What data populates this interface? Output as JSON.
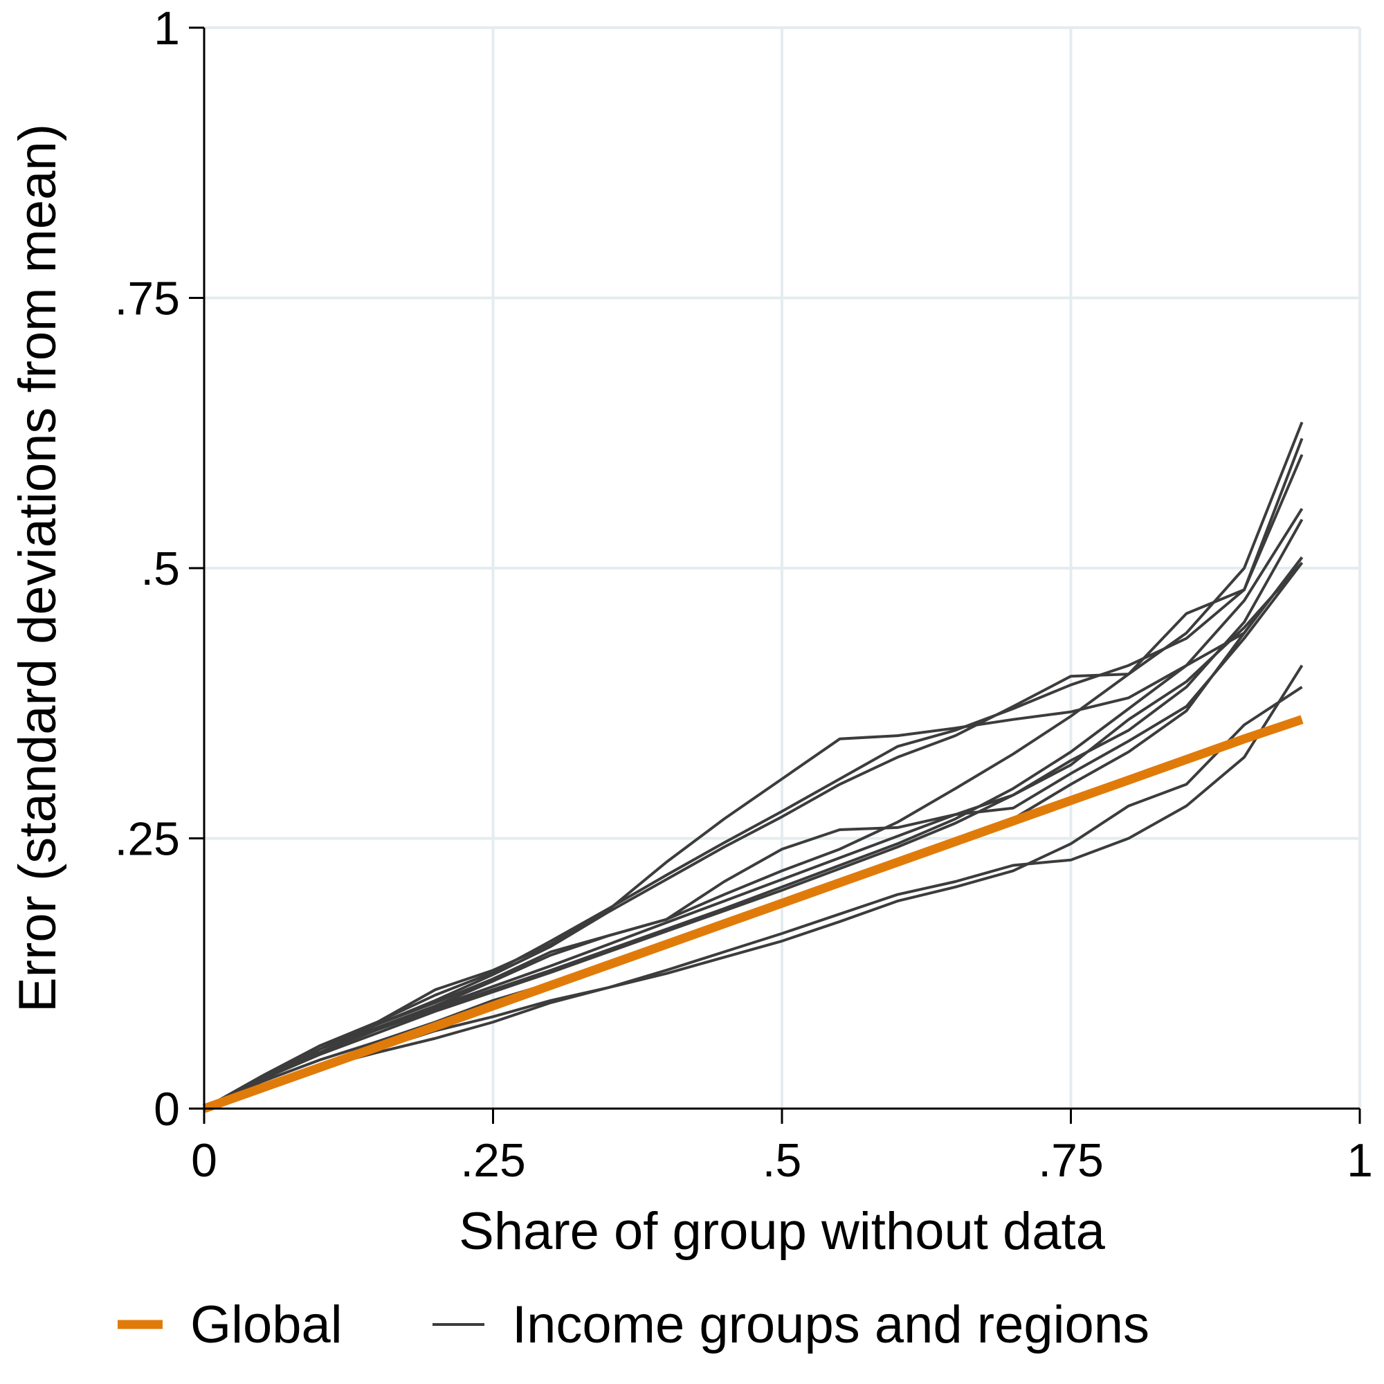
{
  "chart_data": {
    "type": "line",
    "title": "",
    "xlabel": "Share of group without data",
    "ylabel": "Error (standard deviations from mean)",
    "xlim": [
      0,
      1
    ],
    "ylim": [
      0,
      1
    ],
    "x_ticks": [
      {
        "value": 0,
        "label": "0"
      },
      {
        "value": 0.25,
        "label": ".25"
      },
      {
        "value": 0.5,
        "label": ".5"
      },
      {
        "value": 0.75,
        "label": ".75"
      },
      {
        "value": 1,
        "label": "1"
      }
    ],
    "y_ticks": [
      {
        "value": 0,
        "label": "0"
      },
      {
        "value": 0.25,
        "label": ".25"
      },
      {
        "value": 0.5,
        "label": ".5"
      },
      {
        "value": 0.75,
        "label": ".75"
      },
      {
        "value": 1,
        "label": "1"
      }
    ],
    "grid": true,
    "legend_position": "bottom",
    "colors": {
      "global": "#E07B0A",
      "groups": "#3C3C3C",
      "grid": "#E4ECEF",
      "axis": "#000000"
    },
    "x": [
      0,
      0.05,
      0.1,
      0.15,
      0.2,
      0.25,
      0.3,
      0.35,
      0.4,
      0.45,
      0.5,
      0.55,
      0.6,
      0.65,
      0.7,
      0.75,
      0.8,
      0.85,
      0.9,
      0.95
    ],
    "series": [
      {
        "name": "Global",
        "legend_label": "Global",
        "highlight": true,
        "values": [
          0,
          0.019,
          0.038,
          0.057,
          0.076,
          0.095,
          0.114,
          0.133,
          0.152,
          0.171,
          0.19,
          0.209,
          0.228,
          0.247,
          0.266,
          0.285,
          0.304,
          0.323,
          0.342,
          0.36
        ]
      },
      {
        "group": "Income groups and regions",
        "values": [
          0,
          0.03,
          0.058,
          0.08,
          0.11,
          0.128,
          0.152,
          0.184,
          0.228,
          0.268,
          0.305,
          0.342,
          0.345,
          0.352,
          0.36,
          0.367,
          0.38,
          0.41,
          0.44,
          0.51
        ]
      },
      {
        "group": "Income groups and regions",
        "values": [
          0,
          0.03,
          0.058,
          0.08,
          0.105,
          0.126,
          0.155,
          0.185,
          0.216,
          0.246,
          0.275,
          0.305,
          0.335,
          0.35,
          0.37,
          0.392,
          0.41,
          0.435,
          0.48,
          0.62
        ]
      },
      {
        "group": "Income groups and regions",
        "values": [
          0,
          0.028,
          0.055,
          0.078,
          0.1,
          0.124,
          0.15,
          0.182,
          0.212,
          0.242,
          0.27,
          0.3,
          0.325,
          0.345,
          0.372,
          0.4,
          0.402,
          0.458,
          0.48,
          0.605
        ]
      },
      {
        "group": "Income groups and regions",
        "values": [
          0,
          0.03,
          0.058,
          0.078,
          0.098,
          0.12,
          0.145,
          0.16,
          0.175,
          0.21,
          0.24,
          0.258,
          0.26,
          0.272,
          0.278,
          0.31,
          0.34,
          0.372,
          0.435,
          0.505
        ]
      },
      {
        "group": "Income groups and regions",
        "values": [
          0,
          0.028,
          0.055,
          0.075,
          0.095,
          0.118,
          0.142,
          0.16,
          0.175,
          0.198,
          0.22,
          0.24,
          0.265,
          0.296,
          0.328,
          0.363,
          0.402,
          0.44,
          0.5,
          0.635
        ]
      },
      {
        "group": "Income groups and regions",
        "values": [
          0,
          0.028,
          0.052,
          0.074,
          0.094,
          0.113,
          0.132,
          0.152,
          0.172,
          0.192,
          0.212,
          0.232,
          0.252,
          0.272,
          0.29,
          0.318,
          0.36,
          0.395,
          0.445,
          0.505
        ]
      },
      {
        "group": "Income groups and regions",
        "values": [
          0,
          0.028,
          0.052,
          0.073,
          0.092,
          0.11,
          0.128,
          0.147,
          0.166,
          0.185,
          0.205,
          0.225,
          0.245,
          0.268,
          0.296,
          0.33,
          0.37,
          0.41,
          0.47,
          0.555
        ]
      },
      {
        "group": "Income groups and regions",
        "values": [
          0,
          0.027,
          0.05,
          0.07,
          0.09,
          0.108,
          0.126,
          0.145,
          0.164,
          0.183,
          0.202,
          0.222,
          0.242,
          0.264,
          0.29,
          0.322,
          0.35,
          0.39,
          0.45,
          0.545
        ]
      },
      {
        "group": "Income groups and regions",
        "values": [
          0,
          0.025,
          0.045,
          0.062,
          0.08,
          0.1,
          0.116,
          0.134,
          0.152,
          0.172,
          0.192,
          0.21,
          0.228,
          0.248,
          0.268,
          0.3,
          0.33,
          0.368,
          0.44,
          0.51
        ]
      },
      {
        "group": "Income groups and regions",
        "values": [
          0,
          0.022,
          0.04,
          0.055,
          0.072,
          0.085,
          0.1,
          0.112,
          0.125,
          0.14,
          0.155,
          0.173,
          0.192,
          0.205,
          0.22,
          0.245,
          0.28,
          0.3,
          0.355,
          0.39
        ]
      },
      {
        "group": "Income groups and regions",
        "values": [
          0,
          0.022,
          0.038,
          0.052,
          0.065,
          0.08,
          0.098,
          0.112,
          0.128,
          0.145,
          0.162,
          0.18,
          0.198,
          0.21,
          0.225,
          0.23,
          0.25,
          0.28,
          0.325,
          0.41
        ]
      }
    ],
    "legend": [
      {
        "label": "Global",
        "color": "#E07B0A",
        "weight": "thick"
      },
      {
        "label": "Income groups and regions",
        "color": "#3C3C3C",
        "weight": "thin"
      }
    ]
  }
}
